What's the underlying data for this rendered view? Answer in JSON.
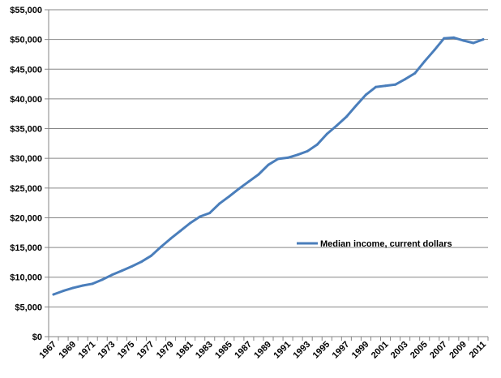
{
  "chart_data": {
    "type": "line",
    "title": "",
    "xlabel": "",
    "ylabel": "",
    "ylim": [
      0,
      55000
    ],
    "y_ticks": [
      "$0",
      "$5,000",
      "$10,000",
      "$15,000",
      "$20,000",
      "$25,000",
      "$30,000",
      "$35,000",
      "$40,000",
      "$45,000",
      "$50,000",
      "$55,000"
    ],
    "y_tick_values": [
      0,
      5000,
      10000,
      15000,
      20000,
      25000,
      30000,
      35000,
      40000,
      45000,
      50000,
      55000
    ],
    "x_ticks": [
      "1967",
      "1969",
      "1971",
      "1973",
      "1975",
      "1977",
      "1979",
      "1981",
      "1983",
      "1985",
      "1987",
      "1989",
      "1991",
      "1993",
      "1995",
      "1997",
      "1999",
      "2001",
      "2003",
      "2005",
      "2007",
      "2009",
      "2011"
    ],
    "x": [
      1967,
      1968,
      1969,
      1970,
      1971,
      1972,
      1973,
      1974,
      1975,
      1976,
      1977,
      1978,
      1979,
      1980,
      1981,
      1982,
      1983,
      1984,
      1985,
      1986,
      1987,
      1988,
      1989,
      1990,
      1991,
      1992,
      1993,
      1994,
      1995,
      1996,
      1997,
      1998,
      1999,
      2000,
      2001,
      2002,
      2003,
      2004,
      2005,
      2006,
      2007,
      2008,
      2009,
      2010,
      2011
    ],
    "series": [
      {
        "name": "Median income, current dollars",
        "color": "#4a7ebb",
        "values": [
          7100,
          7700,
          8200,
          8600,
          8900,
          9600,
          10400,
          11100,
          11800,
          12600,
          13600,
          15100,
          16500,
          17800,
          19100,
          20200,
          20800,
          22400,
          23600,
          24900,
          26100,
          27300,
          28900,
          29900,
          30100,
          30600,
          31200,
          32300,
          34100,
          35500,
          37000,
          38900,
          40700,
          41990,
          42200,
          42400,
          43300,
          44300,
          46300,
          48200,
          50200,
          50300,
          49800,
          49400,
          50000
        ]
      }
    ],
    "grid": "horizontal",
    "legend_position": "center-right"
  }
}
